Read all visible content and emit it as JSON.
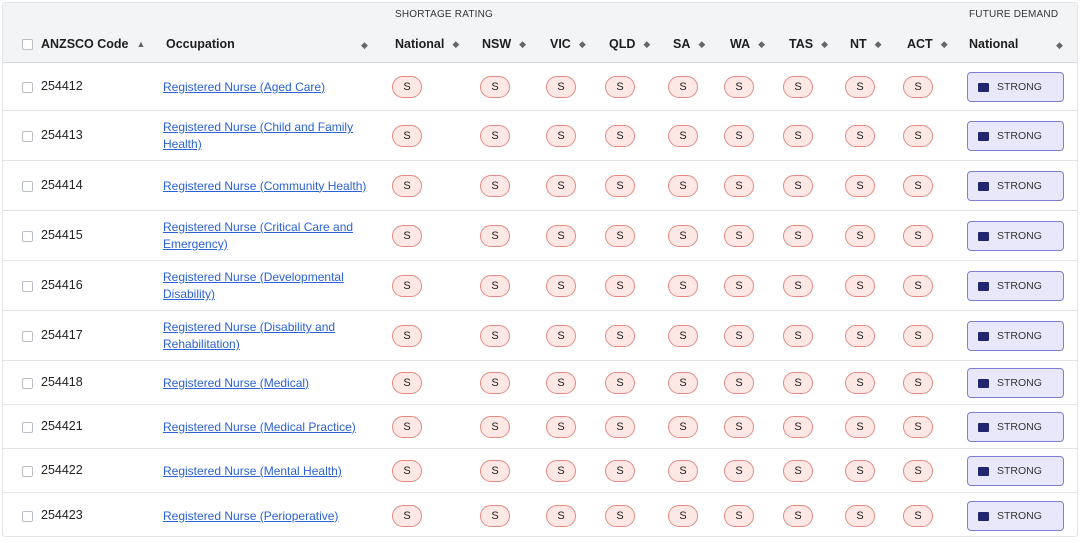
{
  "header": {
    "groups": {
      "shortage": "SHORTAGE RATING",
      "future": "FUTURE DEMAND"
    },
    "columns": {
      "code": "ANZSCO Code",
      "occupation": "Occupation",
      "national": "National",
      "nsw": "NSW",
      "vic": "VIC",
      "qld": "QLD",
      "sa": "SA",
      "wa": "WA",
      "tas": "TAS",
      "nt": "NT",
      "act": "ACT",
      "future_national": "National"
    },
    "icons": {
      "sort_asc": "sort-ascending-icon",
      "sort": "sort-both-icon"
    }
  },
  "colors": {
    "shortage_fill": "#fde8e6",
    "shortage_border": "#e58a80",
    "demand_fill": "#e9e8fb",
    "demand_border": "#7c7fd4",
    "demand_square": "#22266e",
    "link": "#2b62d6"
  },
  "rows": [
    {
      "code": "254412",
      "occupation": "Registered Nurse (Aged Care)",
      "ratings": [
        "S",
        "S",
        "S",
        "S",
        "S",
        "S",
        "S",
        "S",
        "S"
      ],
      "future_demand": "STRONG"
    },
    {
      "code": "254413",
      "occupation": "Registered Nurse (Child and Family Health)",
      "ratings": [
        "S",
        "S",
        "S",
        "S",
        "S",
        "S",
        "S",
        "S",
        "S"
      ],
      "future_demand": "STRONG"
    },
    {
      "code": "254414",
      "occupation": "Registered Nurse (Community Health)",
      "ratings": [
        "S",
        "S",
        "S",
        "S",
        "S",
        "S",
        "S",
        "S",
        "S"
      ],
      "future_demand": "STRONG"
    },
    {
      "code": "254415",
      "occupation": "Registered Nurse (Critical Care and Emergency)",
      "ratings": [
        "S",
        "S",
        "S",
        "S",
        "S",
        "S",
        "S",
        "S",
        "S"
      ],
      "future_demand": "STRONG"
    },
    {
      "code": "254416",
      "occupation": "Registered Nurse (Developmental Disability)",
      "ratings": [
        "S",
        "S",
        "S",
        "S",
        "S",
        "S",
        "S",
        "S",
        "S"
      ],
      "future_demand": "STRONG"
    },
    {
      "code": "254417",
      "occupation": "Registered Nurse (Disability and Rehabilitation)",
      "ratings": [
        "S",
        "S",
        "S",
        "S",
        "S",
        "S",
        "S",
        "S",
        "S"
      ],
      "future_demand": "STRONG"
    },
    {
      "code": "254418",
      "occupation": "Registered Nurse (Medical)",
      "ratings": [
        "S",
        "S",
        "S",
        "S",
        "S",
        "S",
        "S",
        "S",
        "S"
      ],
      "future_demand": "STRONG"
    },
    {
      "code": "254421",
      "occupation": "Registered Nurse (Medical Practice)",
      "ratings": [
        "S",
        "S",
        "S",
        "S",
        "S",
        "S",
        "S",
        "S",
        "S"
      ],
      "future_demand": "STRONG"
    },
    {
      "code": "254422",
      "occupation": "Registered Nurse (Mental Health)",
      "ratings": [
        "S",
        "S",
        "S",
        "S",
        "S",
        "S",
        "S",
        "S",
        "S"
      ],
      "future_demand": "STRONG"
    },
    {
      "code": "254423",
      "occupation": "Registered Nurse (Perioperative)",
      "ratings": [
        "S",
        "S",
        "S",
        "S",
        "S",
        "S",
        "S",
        "S",
        "S"
      ],
      "future_demand": "STRONG"
    }
  ]
}
